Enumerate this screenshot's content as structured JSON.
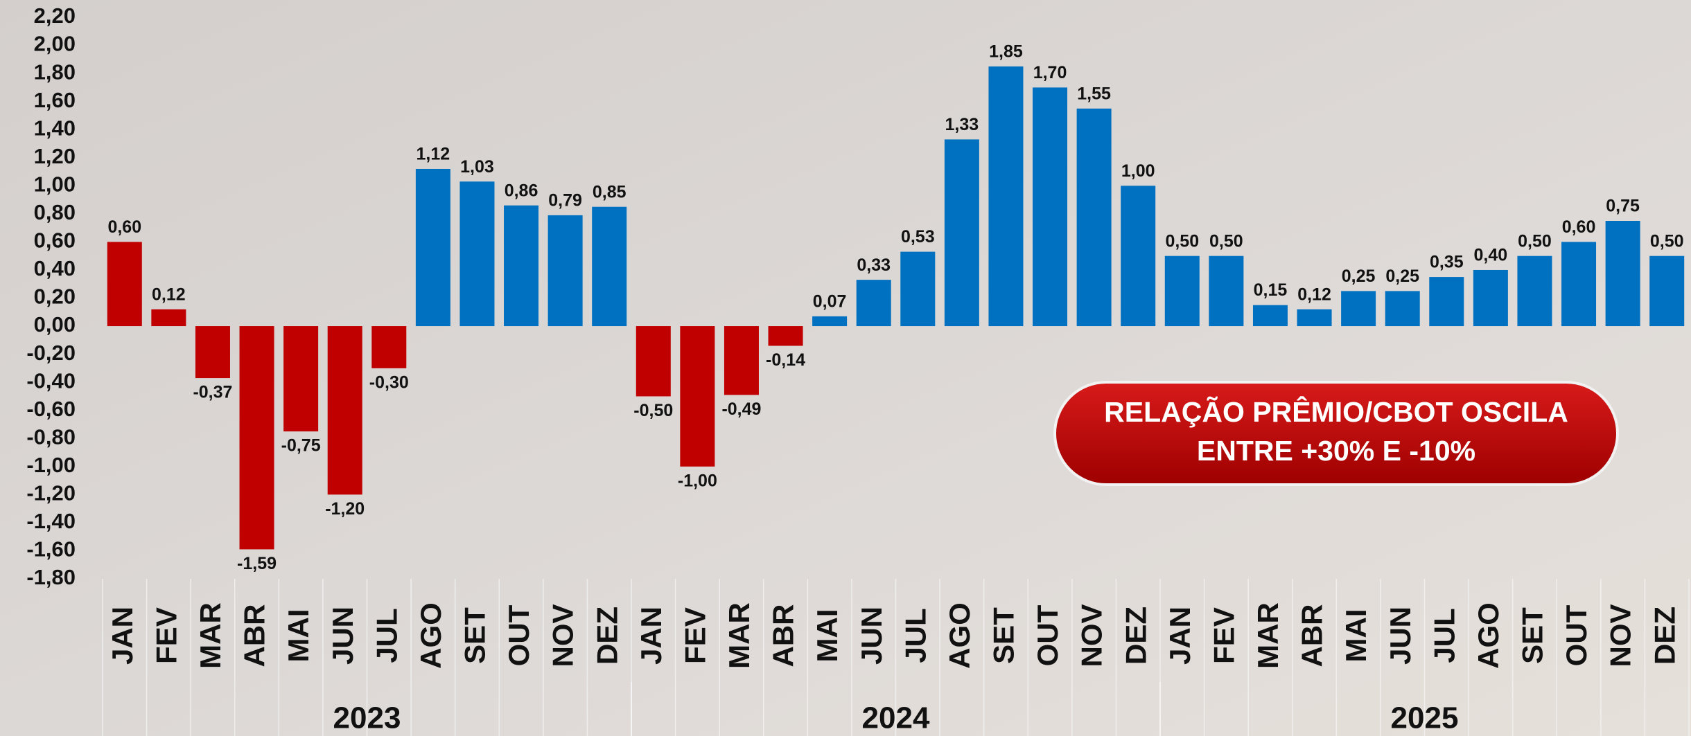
{
  "chart_data": {
    "type": "bar",
    "categories": [
      "JAN",
      "FEV",
      "MAR",
      "ABR",
      "MAI",
      "JUN",
      "JUL",
      "AGO",
      "SET",
      "OUT",
      "NOV",
      "DEZ",
      "JAN",
      "FEV",
      "MAR",
      "ABR",
      "MAI",
      "JUN",
      "JUL",
      "AGO",
      "SET",
      "OUT",
      "NOV",
      "DEZ",
      "JAN",
      "FEV",
      "MAR",
      "ABR",
      "MAI",
      "JUN",
      "JUL",
      "AGO",
      "SET",
      "OUT",
      "NOV",
      "DEZ"
    ],
    "groups": [
      "2023",
      "2024",
      "2025"
    ],
    "values": [
      0.6,
      0.12,
      -0.37,
      -1.59,
      -0.75,
      -1.2,
      -0.3,
      1.12,
      1.03,
      0.86,
      0.79,
      0.85,
      -0.5,
      -1.0,
      -0.49,
      -0.14,
      0.07,
      0.33,
      0.53,
      1.33,
      1.85,
      1.7,
      1.55,
      1.0,
      0.5,
      0.5,
      0.15,
      0.12,
      0.25,
      0.25,
      0.35,
      0.4,
      0.5,
      0.6,
      0.75,
      0.5
    ],
    "value_labels": [
      "0,60",
      "0,12",
      "-0,37",
      "-1,59",
      "-0,75",
      "-1,20",
      "-0,30",
      "1,12",
      "1,03",
      "0,86",
      "0,79",
      "0,85",
      "-0,50",
      "-1,00",
      "-0,49",
      "-0,14",
      "0,07",
      "0,33",
      "0,53",
      "1,33",
      "1,85",
      "1,70",
      "1,55",
      "1,00",
      "0,50",
      "0,50",
      "0,15",
      "0,12",
      "0,25",
      "0,25",
      "0,35",
      "0,40",
      "0,50",
      "0,60",
      "0,75",
      "0,50"
    ],
    "colors": [
      "#c00000",
      "#c00000",
      "#c00000",
      "#c00000",
      "#c00000",
      "#c00000",
      "#c00000",
      "#0070c0",
      "#0070c0",
      "#0070c0",
      "#0070c0",
      "#0070c0",
      "#c00000",
      "#c00000",
      "#c00000",
      "#c00000",
      "#0070c0",
      "#0070c0",
      "#0070c0",
      "#0070c0",
      "#0070c0",
      "#0070c0",
      "#0070c0",
      "#0070c0",
      "#0070c0",
      "#0070c0",
      "#0070c0",
      "#0070c0",
      "#0070c0",
      "#0070c0",
      "#0070c0",
      "#0070c0",
      "#0070c0",
      "#0070c0",
      "#0070c0",
      "#0070c0"
    ],
    "ylim": [
      -1.8,
      2.2
    ],
    "yticks": [
      {
        "value": 2.2,
        "label": "2,20"
      },
      {
        "value": 2.0,
        "label": "2,00"
      },
      {
        "value": 1.8,
        "label": "1,80"
      },
      {
        "value": 1.6,
        "label": "1,60"
      },
      {
        "value": 1.4,
        "label": "1,40"
      },
      {
        "value": 1.2,
        "label": "1,20"
      },
      {
        "value": 1.0,
        "label": "1,00"
      },
      {
        "value": 0.8,
        "label": "0,80"
      },
      {
        "value": 0.6,
        "label": "0,60"
      },
      {
        "value": 0.4,
        "label": "0,40"
      },
      {
        "value": 0.2,
        "label": "0,20"
      },
      {
        "value": 0,
        "label": "0,00"
      },
      {
        "value": -0.2,
        "label": "-0,20"
      },
      {
        "value": -0.4,
        "label": "-0,40"
      },
      {
        "value": -0.6,
        "label": "-0,60"
      },
      {
        "value": -0.8,
        "label": "-0,80"
      },
      {
        "value": -1.0,
        "label": "-1,00"
      },
      {
        "value": -1.2,
        "label": "-1,20"
      },
      {
        "value": -1.4,
        "label": "-1,40"
      },
      {
        "value": -1.6,
        "label": "-1,60"
      },
      {
        "value": -1.8,
        "label": "-1,80"
      }
    ],
    "annotation": [
      "RELAÇÃO PRÊMIO/CBOT OSCILA",
      "ENTRE +30% E -10%"
    ]
  }
}
